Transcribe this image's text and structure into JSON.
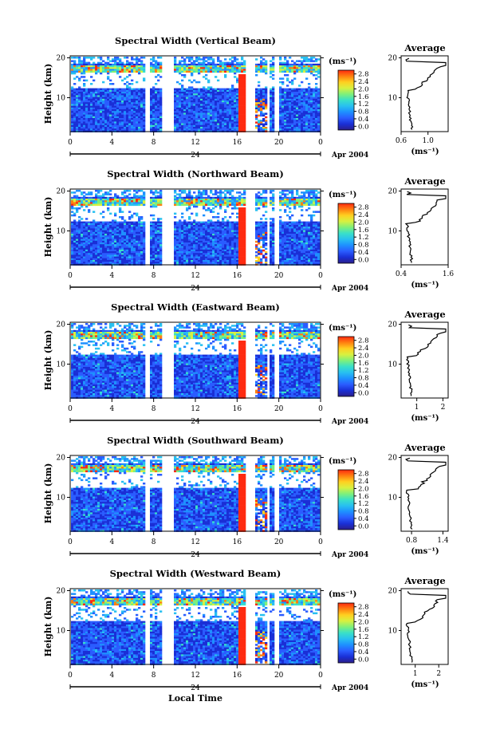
{
  "figure": {
    "xlabel": "Local Time",
    "date_label": "Apr 2004",
    "day_label": "24",
    "colorbar_unit": "(ms⁻¹)",
    "colorbar_ticks": [
      "0.0",
      "0.4",
      "0.8",
      "1.2",
      "1.6",
      "2.0",
      "2.4",
      "2.8"
    ],
    "colors": {
      "scale": [
        "#2b1f8a",
        "#1a2fd6",
        "#2a5cff",
        "#1e90ff",
        "#28c0f0",
        "#39e0c8",
        "#7ff07a",
        "#d8f040",
        "#ffd020",
        "#ff8010",
        "#ff2a10"
      ]
    }
  },
  "chart_data": [
    {
      "type": "heatmap",
      "title": "Spectral Width (Vertical Beam)",
      "ylabel": "Height (km)",
      "x_ticks": [
        "0",
        "4",
        "8",
        "12",
        "16",
        "20",
        "0"
      ],
      "y_ticks": [
        "10",
        "20"
      ],
      "profile": {
        "title": "Average",
        "xlabel": "(ms⁻¹)",
        "x_ticks": [
          "0.6",
          "1.0"
        ],
        "xlim": [
          0.6,
          1.3
        ],
        "y_ticks": [
          "10",
          "20"
        ]
      }
    },
    {
      "type": "heatmap",
      "title": "Spectral Width (Northward Beam)",
      "ylabel": "Height (km)",
      "x_ticks": [
        "0",
        "4",
        "8",
        "12",
        "16",
        "20",
        "0"
      ],
      "y_ticks": [
        "10",
        "20"
      ],
      "profile": {
        "title": "Average",
        "xlabel": "(ms⁻¹)",
        "x_ticks": [
          "0.4",
          "1.6"
        ],
        "xlim": [
          0.4,
          1.6
        ],
        "y_ticks": [
          "10",
          "20"
        ]
      }
    },
    {
      "type": "heatmap",
      "title": "Spectral Width (Eastward Beam)",
      "ylabel": "Height (km)",
      "x_ticks": [
        "0",
        "4",
        "8",
        "12",
        "16",
        "20",
        "0"
      ],
      "y_ticks": [
        "10",
        "20"
      ],
      "profile": {
        "title": "Average",
        "xlabel": "(ms⁻¹)",
        "x_ticks": [
          "1",
          "2"
        ],
        "xlim": [
          0.4,
          2.2
        ],
        "y_ticks": [
          "10",
          "20"
        ]
      }
    },
    {
      "type": "heatmap",
      "title": "Spectral Width (Southward Beam)",
      "ylabel": "Height (km)",
      "x_ticks": [
        "0",
        "4",
        "8",
        "12",
        "16",
        "20",
        "0"
      ],
      "y_ticks": [
        "10",
        "20"
      ],
      "profile": {
        "title": "Average",
        "xlabel": "(ms⁻¹)",
        "x_ticks": [
          "0.8",
          "1.4"
        ],
        "xlim": [
          0.6,
          1.5
        ],
        "y_ticks": [
          "10",
          "20"
        ]
      }
    },
    {
      "type": "heatmap",
      "title": "Spectral Width (Westward Beam)",
      "ylabel": "Height (km)",
      "x_ticks": [
        "0",
        "4",
        "8",
        "12",
        "16",
        "20",
        "0"
      ],
      "y_ticks": [
        "10",
        "20"
      ],
      "profile": {
        "title": "Average",
        "xlabel": "(ms⁻¹)",
        "x_ticks": [
          "1",
          "2"
        ],
        "xlim": [
          0.4,
          2.4
        ],
        "y_ticks": [
          "10",
          "20"
        ]
      }
    }
  ]
}
